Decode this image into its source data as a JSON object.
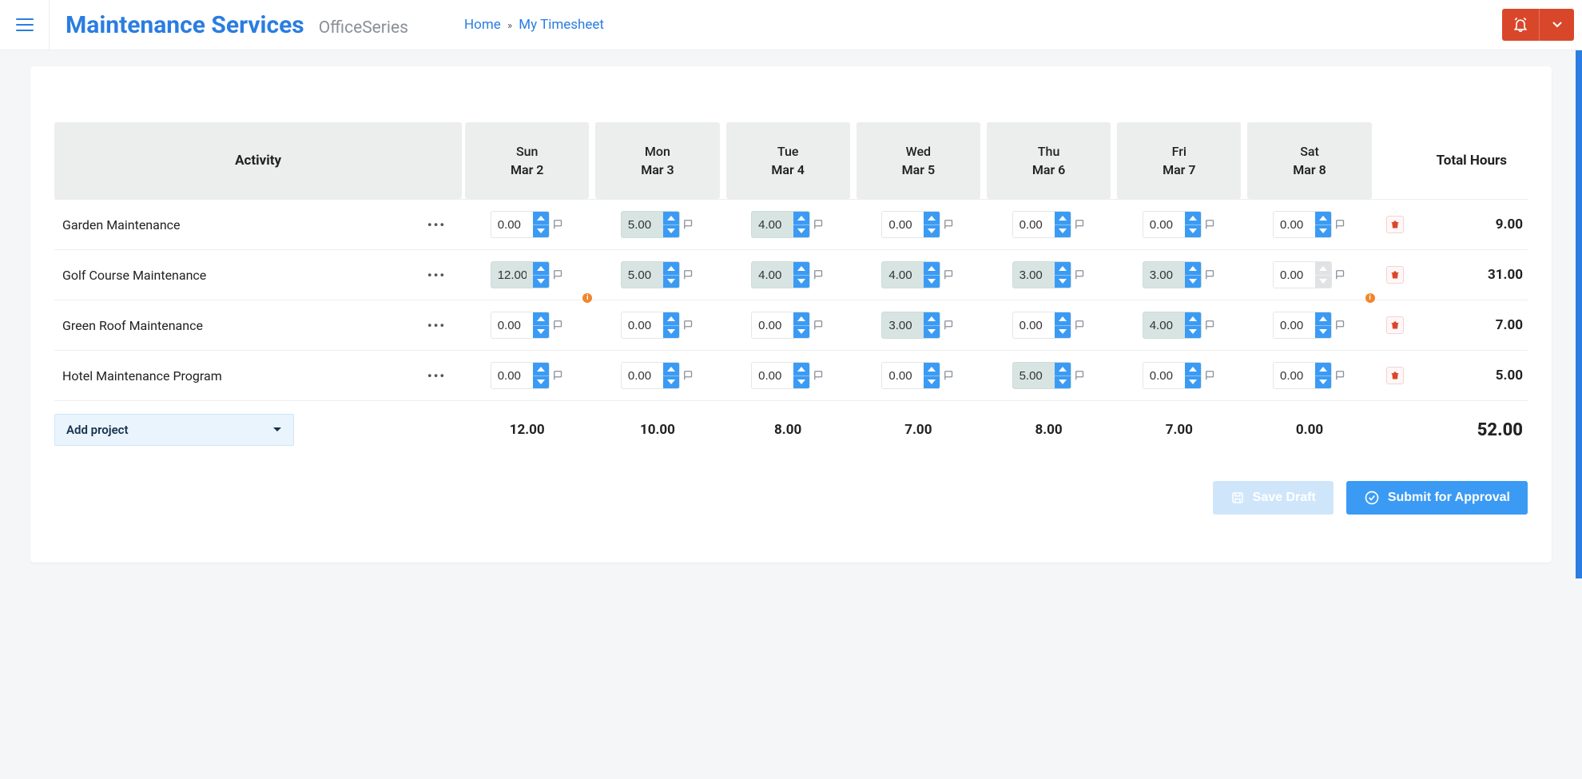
{
  "header": {
    "brand_main": "Maintenance Services",
    "brand_sub": "OfficeSeries",
    "breadcrumb": {
      "home": "Home",
      "current": "My Timesheet"
    }
  },
  "table": {
    "header": {
      "activity": "Activity",
      "total": "Total Hours",
      "days": [
        {
          "dow": "Sun",
          "date": "Mar 2"
        },
        {
          "dow": "Mon",
          "date": "Mar 3"
        },
        {
          "dow": "Tue",
          "date": "Mar 4"
        },
        {
          "dow": "Wed",
          "date": "Mar 5"
        },
        {
          "dow": "Thu",
          "date": "Mar 6"
        },
        {
          "dow": "Fri",
          "date": "Mar 7"
        },
        {
          "dow": "Sat",
          "date": "Mar 8"
        }
      ]
    },
    "rows": [
      {
        "activity": "Garden Maintenance",
        "cells": [
          {
            "value": "0.00",
            "filled": false,
            "warn": false
          },
          {
            "value": "5.00",
            "filled": true,
            "warn": false
          },
          {
            "value": "4.00",
            "filled": true,
            "warn": false
          },
          {
            "value": "0.00",
            "filled": false,
            "warn": false
          },
          {
            "value": "0.00",
            "filled": false,
            "warn": false
          },
          {
            "value": "0.00",
            "filled": false,
            "warn": false
          },
          {
            "value": "0.00",
            "filled": false,
            "warn": false
          }
        ],
        "total": "9.00"
      },
      {
        "activity": "Golf Course Maintenance",
        "cells": [
          {
            "value": "12.00",
            "filled": true,
            "warn": true
          },
          {
            "value": "5.00",
            "filled": true,
            "warn": false
          },
          {
            "value": "4.00",
            "filled": true,
            "warn": false
          },
          {
            "value": "4.00",
            "filled": true,
            "warn": false
          },
          {
            "value": "3.00",
            "filled": true,
            "warn": false
          },
          {
            "value": "3.00",
            "filled": true,
            "warn": false
          },
          {
            "value": "0.00",
            "filled": false,
            "warn": true,
            "disabled": true
          }
        ],
        "total": "31.00"
      },
      {
        "activity": "Green Roof Maintenance",
        "cells": [
          {
            "value": "0.00",
            "filled": false,
            "warn": false
          },
          {
            "value": "0.00",
            "filled": false,
            "warn": false
          },
          {
            "value": "0.00",
            "filled": false,
            "warn": false
          },
          {
            "value": "3.00",
            "filled": true,
            "warn": false
          },
          {
            "value": "0.00",
            "filled": false,
            "warn": false
          },
          {
            "value": "4.00",
            "filled": true,
            "warn": false
          },
          {
            "value": "0.00",
            "filled": false,
            "warn": false
          }
        ],
        "total": "7.00"
      },
      {
        "activity": "Hotel Maintenance Program",
        "cells": [
          {
            "value": "0.00",
            "filled": false,
            "warn": false
          },
          {
            "value": "0.00",
            "filled": false,
            "warn": false
          },
          {
            "value": "0.00",
            "filled": false,
            "warn": false
          },
          {
            "value": "0.00",
            "filled": false,
            "warn": false
          },
          {
            "value": "5.00",
            "filled": true,
            "warn": false
          },
          {
            "value": "0.00",
            "filled": false,
            "warn": false
          },
          {
            "value": "0.00",
            "filled": false,
            "warn": false
          }
        ],
        "total": "5.00"
      }
    ],
    "footer": {
      "add_project": "Add project",
      "col_totals": [
        "12.00",
        "10.00",
        "8.00",
        "7.00",
        "8.00",
        "7.00",
        "0.00"
      ],
      "grand_total": "52.00"
    }
  },
  "actions": {
    "save_draft": "Save Draft",
    "submit": "Submit for Approval"
  },
  "colors": {
    "primary": "#2a7de1",
    "accent_blue": "#3b9bf4",
    "danger": "#d9472b",
    "filled_bg": "#d7e4e2",
    "header_bg": "#eceded",
    "page_bg": "#f5f6f7"
  }
}
